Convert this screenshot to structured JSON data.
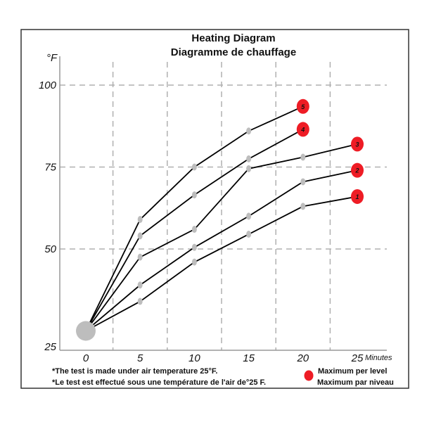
{
  "chart_data": {
    "type": "line",
    "title": "Heating Diagram",
    "subtitle": "Diagramme de chauffage",
    "ylabel": "°F",
    "xlabel": "Minutes",
    "x_ticks": [
      0,
      5,
      10,
      15,
      20,
      25
    ],
    "y_ticks": [
      25,
      50,
      75,
      100
    ],
    "xlim": [
      -2.4,
      27.8
    ],
    "ylim": [
      19,
      108
    ],
    "grid": "dashed",
    "start_point": {
      "x": 0,
      "y": 25
    },
    "series": [
      {
        "name": "1",
        "x": [
          0,
          5,
          10,
          15,
          20,
          25
        ],
        "y": [
          25,
          34,
          46,
          54.5,
          63,
          66
        ]
      },
      {
        "name": "2",
        "x": [
          0,
          5,
          10,
          15,
          20,
          25
        ],
        "y": [
          25,
          39,
          50.5,
          60,
          70.5,
          74
        ]
      },
      {
        "name": "3",
        "x": [
          0,
          5,
          10,
          15,
          20,
          25
        ],
        "y": [
          25,
          47.5,
          56,
          74.5,
          78,
          82
        ]
      },
      {
        "name": "4",
        "x": [
          0,
          5,
          10,
          15,
          20
        ],
        "y": [
          25,
          54,
          66.5,
          77.5,
          86.5
        ]
      },
      {
        "name": "5",
        "x": [
          0,
          5,
          10,
          15,
          20
        ],
        "y": [
          25,
          59,
          75,
          86,
          93.5
        ]
      }
    ],
    "colors": {
      "line": "#000000",
      "point": "#bdbdbd",
      "max_marker": "#ee1c25",
      "grid": "#b0b0b0"
    }
  },
  "notes": [
    "*The test is made under air temperature 25°F.",
    "*Le test est effectué sous une température de l'air de°25  F."
  ],
  "legend": {
    "line1": "Maximum per level",
    "line2": "Maximum par niveau"
  }
}
